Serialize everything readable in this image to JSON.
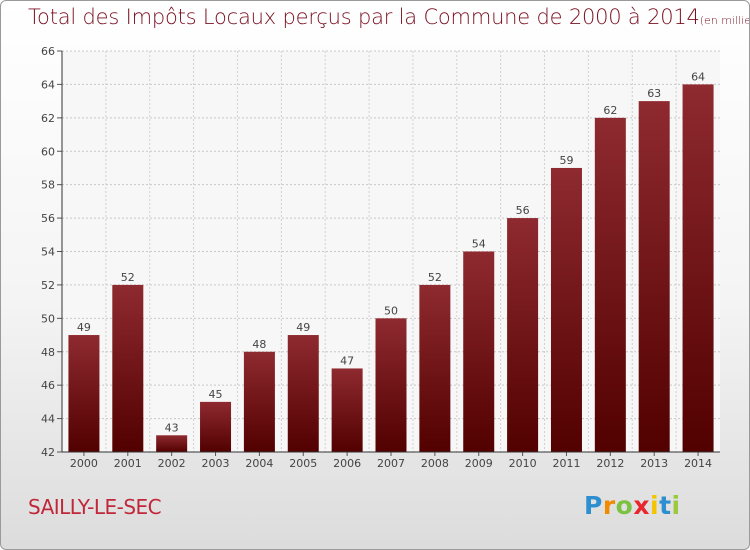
{
  "header": {
    "title": "Total des Impôts Locaux perçus par la Commune de 2000 à 2014",
    "unit": "(en milliers d'€)"
  },
  "commune": "SAILLY-LE-SEC",
  "brand": {
    "letters": [
      "P",
      "r",
      "o",
      "x",
      "i",
      "t",
      "i"
    ],
    "colors": [
      "#2e8fd0",
      "#f08a00",
      "#7cc242",
      "#e8262d",
      "#f2c500",
      "#2e8fd0",
      "#9ac93c"
    ]
  },
  "chart_data": {
    "type": "bar",
    "title": "Total des Impôts Locaux perçus par la Commune de 2000 à 2014",
    "categories": [
      "2000",
      "2001",
      "2002",
      "2003",
      "2004",
      "2005",
      "2006",
      "2007",
      "2008",
      "2009",
      "2010",
      "2011",
      "2012",
      "2013",
      "2014"
    ],
    "values": [
      49,
      52,
      43,
      45,
      48,
      49,
      47,
      50,
      52,
      54,
      56,
      59,
      62,
      63,
      64
    ],
    "ylim": [
      42,
      66
    ],
    "yticks": [
      42,
      44,
      46,
      48,
      50,
      52,
      54,
      56,
      58,
      60,
      62,
      64,
      66
    ],
    "grid": true,
    "bar_color_top": "#8e2a30",
    "bar_color_bottom": "#520000"
  }
}
